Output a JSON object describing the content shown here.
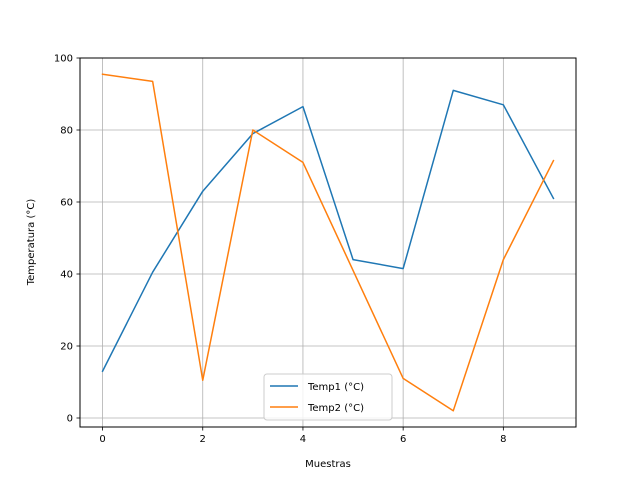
{
  "chart_data": {
    "type": "line",
    "title": "",
    "xlabel": "Muestras",
    "ylabel": "Temperatura (°C)",
    "x": [
      0,
      1,
      2,
      3,
      4,
      5,
      6,
      7,
      8,
      9
    ],
    "xlim": [
      -0.45,
      9.45
    ],
    "ylim": [
      -2.5,
      100
    ],
    "xticks": [
      0,
      2,
      4,
      6,
      8
    ],
    "yticks": [
      0,
      20,
      40,
      60,
      80,
      100
    ],
    "grid": true,
    "legend_position": "bottom-center",
    "series": [
      {
        "name": "Temp1 (°C)",
        "color": "#1f77b4",
        "values": [
          13,
          40.5,
          63,
          79,
          86.5,
          44,
          41.5,
          91,
          87,
          61
        ]
      },
      {
        "name": "Temp2 (°C)",
        "color": "#ff7f0e",
        "values": [
          95.5,
          93.5,
          10.5,
          80,
          71,
          41,
          11,
          2,
          44,
          71.5
        ]
      }
    ]
  }
}
